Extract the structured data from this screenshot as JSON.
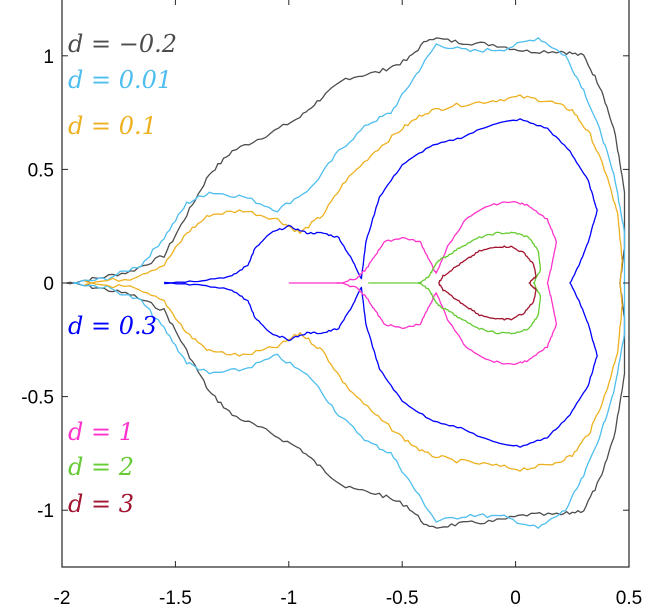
{
  "chart_data": {
    "type": "line",
    "title": "",
    "xlabel": "",
    "ylabel": "",
    "xlim": [
      -2,
      0.5
    ],
    "ylim": [
      -1.25,
      1.25
    ],
    "xticks": [
      -2,
      -1.5,
      -1,
      -0.5,
      0,
      0.5
    ],
    "yticks": [
      1,
      0.5,
      0,
      -0.5,
      -1
    ],
    "xtick_labels": [
      "-2",
      "-1.5",
      "-1",
      "-0.5",
      "0",
      "0.5"
    ],
    "ytick_labels": [
      "1",
      "0.5",
      "0",
      "-0.5",
      "-1"
    ],
    "legend_placement": "left (stacked labels beside curves)",
    "grid": false,
    "series": [
      {
        "name": "d = −0.2",
        "color": "#4d4d4d",
        "points": [
          [
            -1.98,
            0
          ],
          [
            -1.85,
            0.02
          ],
          [
            -1.7,
            0.05
          ],
          [
            -1.55,
            0.12
          ],
          [
            -1.45,
            0.3
          ],
          [
            -1.35,
            0.48
          ],
          [
            -1.25,
            0.58
          ],
          [
            -1.1,
            0.65
          ],
          [
            -0.95,
            0.73
          ],
          [
            -0.85,
            0.82
          ],
          [
            -0.75,
            0.9
          ],
          [
            -0.6,
            0.93
          ],
          [
            -0.48,
            0.98
          ],
          [
            -0.38,
            1.08
          ],
          [
            -0.25,
            1.06
          ],
          [
            -0.1,
            1.05
          ],
          [
            0.05,
            1.02
          ],
          [
            0.2,
            1.02
          ],
          [
            0.3,
            1.0
          ],
          [
            0.38,
            0.85
          ],
          [
            0.44,
            0.65
          ],
          [
            0.48,
            0.4
          ],
          [
            0.48,
            0.15
          ],
          [
            0.46,
            0
          ]
        ]
      },
      {
        "name": "d = 0.01",
        "color": "#4dbeee",
        "points": [
          [
            -1.95,
            0
          ],
          [
            -1.8,
            0.02
          ],
          [
            -1.65,
            0.08
          ],
          [
            -1.55,
            0.2
          ],
          [
            -1.45,
            0.35
          ],
          [
            -1.35,
            0.4
          ],
          [
            -1.2,
            0.38
          ],
          [
            -1.05,
            0.32
          ],
          [
            -0.9,
            0.42
          ],
          [
            -0.78,
            0.58
          ],
          [
            -0.65,
            0.7
          ],
          [
            -0.55,
            0.75
          ],
          [
            -0.45,
            0.9
          ],
          [
            -0.35,
            1.05
          ],
          [
            -0.2,
            1.02
          ],
          [
            -0.05,
            1.03
          ],
          [
            0.1,
            1.08
          ],
          [
            0.22,
            1.0
          ],
          [
            0.3,
            0.85
          ],
          [
            0.38,
            0.65
          ],
          [
            0.44,
            0.45
          ],
          [
            0.48,
            0.22
          ],
          [
            0.48,
            0
          ]
        ]
      },
      {
        "name": "d = 0.1",
        "color": "#edb120",
        "points": [
          [
            -1.9,
            0
          ],
          [
            -1.7,
            0.02
          ],
          [
            -1.55,
            0.08
          ],
          [
            -1.45,
            0.22
          ],
          [
            -1.35,
            0.3
          ],
          [
            -1.2,
            0.32
          ],
          [
            -1.05,
            0.28
          ],
          [
            -0.95,
            0.22
          ],
          [
            -0.85,
            0.3
          ],
          [
            -0.75,
            0.45
          ],
          [
            -0.62,
            0.58
          ],
          [
            -0.5,
            0.68
          ],
          [
            -0.4,
            0.75
          ],
          [
            -0.28,
            0.78
          ],
          [
            -0.12,
            0.8
          ],
          [
            0.02,
            0.82
          ],
          [
            0.15,
            0.8
          ],
          [
            0.25,
            0.76
          ],
          [
            0.33,
            0.65
          ],
          [
            0.4,
            0.48
          ],
          [
            0.45,
            0.3
          ],
          [
            0.47,
            0.1
          ],
          [
            0.46,
            0
          ]
        ]
      },
      {
        "name": "d = 0.3",
        "color": "#0000ff",
        "points": [
          [
            -1.55,
            0
          ],
          [
            -1.4,
            0.01
          ],
          [
            -1.25,
            0.03
          ],
          [
            -1.18,
            0.08
          ],
          [
            -1.15,
            0.15
          ],
          [
            -1.08,
            0.22
          ],
          [
            -1.0,
            0.25
          ],
          [
            -0.92,
            0.22
          ],
          [
            -0.85,
            0.22
          ],
          [
            -0.78,
            0.2
          ],
          [
            -0.72,
            0.1
          ],
          [
            -0.68,
            0.02
          ],
          [
            -0.66,
            0.18
          ],
          [
            -0.6,
            0.38
          ],
          [
            -0.5,
            0.52
          ],
          [
            -0.38,
            0.6
          ],
          [
            -0.24,
            0.64
          ],
          [
            -0.1,
            0.7
          ],
          [
            0.02,
            0.72
          ],
          [
            0.14,
            0.68
          ],
          [
            0.24,
            0.58
          ],
          [
            0.32,
            0.45
          ],
          [
            0.36,
            0.32
          ],
          [
            0.32,
            0.18
          ],
          [
            0.28,
            0.08
          ],
          [
            0.24,
            0
          ]
        ]
      },
      {
        "name": "d = 1",
        "color": "#ff33cc",
        "points": [
          [
            -1.0,
            0
          ],
          [
            -0.9,
            0
          ],
          [
            -0.78,
            0
          ],
          [
            -0.7,
            0.02
          ],
          [
            -0.66,
            0.06
          ],
          [
            -0.62,
            0.12
          ],
          [
            -0.58,
            0.18
          ],
          [
            -0.5,
            0.2
          ],
          [
            -0.42,
            0.18
          ],
          [
            -0.38,
            0.1
          ],
          [
            -0.35,
            0.04
          ],
          [
            -0.3,
            0.16
          ],
          [
            -0.22,
            0.28
          ],
          [
            -0.12,
            0.34
          ],
          [
            -0.02,
            0.36
          ],
          [
            0.06,
            0.34
          ],
          [
            0.14,
            0.28
          ],
          [
            0.18,
            0.18
          ],
          [
            0.16,
            0.08
          ],
          [
            0.14,
            0
          ]
        ]
      },
      {
        "name": "d = 2",
        "color": "#66cc33",
        "points": [
          [
            -0.65,
            0
          ],
          [
            -0.52,
            0
          ],
          [
            -0.42,
            0
          ],
          [
            -0.38,
            0.03
          ],
          [
            -0.36,
            0.07
          ],
          [
            -0.34,
            0.1
          ],
          [
            -0.3,
            0.12
          ],
          [
            -0.24,
            0.16
          ],
          [
            -0.16,
            0.2
          ],
          [
            -0.08,
            0.22
          ],
          [
            0.0,
            0.22
          ],
          [
            0.06,
            0.2
          ],
          [
            0.1,
            0.14
          ],
          [
            0.11,
            0.06
          ],
          [
            0.08,
            0
          ]
        ]
      },
      {
        "name": "d = 3",
        "color": "#a2142f",
        "points": [
          [
            -0.34,
            0
          ],
          [
            -0.32,
            0.03
          ],
          [
            -0.28,
            0.06
          ],
          [
            -0.22,
            0.1
          ],
          [
            -0.16,
            0.14
          ],
          [
            -0.08,
            0.16
          ],
          [
            -0.02,
            0.16
          ],
          [
            0.04,
            0.13
          ],
          [
            0.08,
            0.08
          ],
          [
            0.09,
            0.03
          ],
          [
            0.06,
            0
          ]
        ]
      }
    ]
  }
}
